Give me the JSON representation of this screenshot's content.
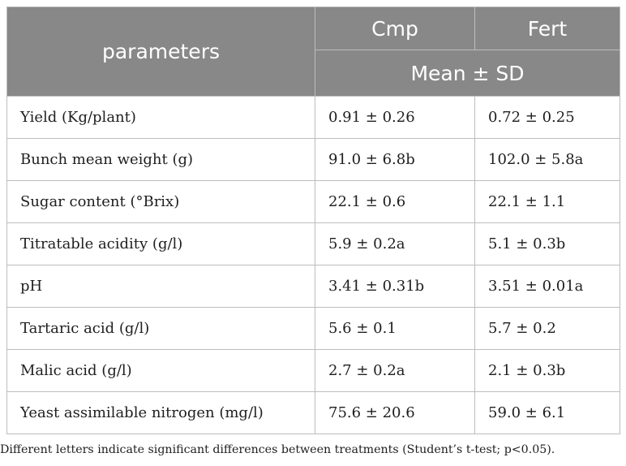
{
  "header": {
    "parameters_label": "parameters",
    "col1_label": "Cmp",
    "col2_label": "Fert",
    "subheader_label": "Mean ± SD"
  },
  "rows": [
    {
      "parameter": "Yield (Kg/plant)",
      "cmp": "0.91 ± 0.26",
      "fert": "0.72 ± 0.25"
    },
    {
      "parameter": "Bunch mean weight (g)",
      "cmp": "91.0 ± 6.8b",
      "fert": "102.0 ± 5.8a"
    },
    {
      "parameter": "Sugar content (°Brix)",
      "cmp": "22.1 ± 0.6",
      "fert": "22.1 ± 1.1"
    },
    {
      "parameter": "Titratable acidity (g/l)",
      "cmp": "5.9 ± 0.2a",
      "fert": "5.1 ± 0.3b"
    },
    {
      "parameter": "pH",
      "cmp": "3.41 ± 0.31b",
      "fert": "3.51 ± 0.01a"
    },
    {
      "parameter": "Tartaric acid (g/l)",
      "cmp": "5.6 ± 0.1",
      "fert": "5.7 ± 0.2"
    },
    {
      "parameter": "Malic acid (g/l)",
      "cmp": "2.7 ± 0.2a",
      "fert": "2.1 ± 0.3b"
    },
    {
      "parameter": "Yeast assimilable nitrogen (mg/l)",
      "cmp": "75.6 ± 20.6",
      "fert": "59.0 ± 6.1"
    }
  ],
  "footnote": "Different letters indicate significant differences between treatments (Student’s t-test; p<0.05).",
  "colors": {
    "header_background": "#888888",
    "header_text": "#ffffff",
    "border": "#bdbdbd",
    "body_text": "#1e1e1e"
  }
}
